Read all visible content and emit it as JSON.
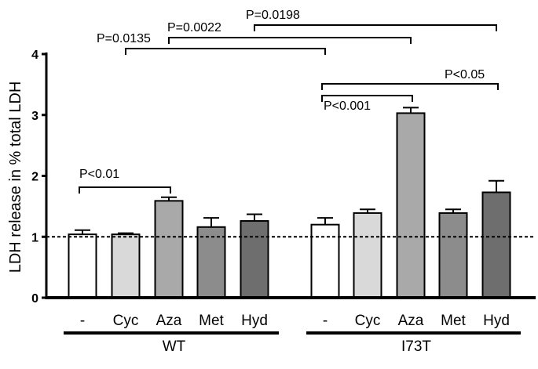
{
  "chart_data": {
    "type": "bar",
    "ylabel": "LDH release in % total LDH",
    "ylim": [
      0,
      4
    ],
    "yticks": [
      "0",
      "1",
      "2",
      "3",
      "4"
    ],
    "reference_line": 1,
    "groups": [
      {
        "name": "WT",
        "categories": [
          "-",
          "Cyc",
          "Aza",
          "Met",
          "Hyd"
        ],
        "values": [
          1.04,
          1.04,
          1.59,
          1.16,
          1.26
        ],
        "errors": [
          0.07,
          0.02,
          0.06,
          0.15,
          0.11
        ]
      },
      {
        "name": "I73T",
        "categories": [
          "-",
          "Cyc",
          "Aza",
          "Met",
          "Hyd"
        ],
        "values": [
          1.2,
          1.39,
          3.03,
          1.39,
          1.73
        ],
        "errors": [
          0.11,
          0.06,
          0.09,
          0.06,
          0.19
        ]
      }
    ],
    "bar_colors": [
      "#ffffff",
      "#d9d9d9",
      "#a9a9a9",
      "#8c8c8c",
      "#6e6e6e"
    ],
    "annotations": [
      {
        "label": "P<0.01",
        "from": [
          0,
          0
        ],
        "to": [
          0,
          2
        ]
      },
      {
        "label": "P<0.001",
        "from": [
          1,
          0
        ],
        "to": [
          1,
          2
        ]
      },
      {
        "label": "P<0.05",
        "from": [
          1,
          0
        ],
        "to": [
          1,
          4
        ]
      },
      {
        "label": "P=0.0135",
        "from": [
          0,
          1
        ],
        "to": [
          1,
          0
        ]
      },
      {
        "label": "P=0.0022",
        "from": [
          0,
          2
        ],
        "to": [
          1,
          2
        ]
      },
      {
        "label": "P=0.0198",
        "from": [
          0,
          4
        ],
        "to": [
          1,
          4
        ]
      }
    ]
  }
}
